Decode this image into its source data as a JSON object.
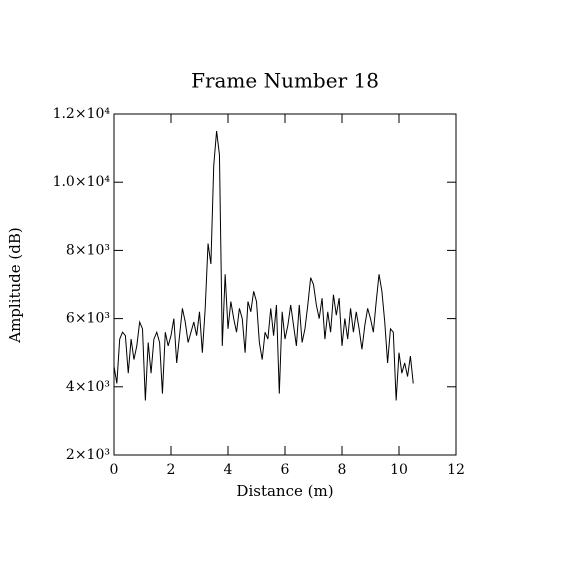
{
  "chart_data": {
    "type": "line",
    "title": "Frame Number 18",
    "xlabel": "Distance (m)",
    "ylabel": "Amplitude (dB)",
    "color": "#000000",
    "x": [
      0.0,
      0.1,
      0.2,
      0.3,
      0.4,
      0.5,
      0.6,
      0.7,
      0.8,
      0.9,
      1.0,
      1.1,
      1.2,
      1.3,
      1.4,
      1.5,
      1.6,
      1.7,
      1.8,
      1.9,
      2.0,
      2.1,
      2.2,
      2.3,
      2.4,
      2.5,
      2.6,
      2.7,
      2.8,
      2.9,
      3.0,
      3.1,
      3.2,
      3.3,
      3.4,
      3.5,
      3.6,
      3.7,
      3.8,
      3.9,
      4.0,
      4.1,
      4.2,
      4.3,
      4.4,
      4.5,
      4.6,
      4.7,
      4.8,
      4.9,
      5.0,
      5.1,
      5.2,
      5.3,
      5.4,
      5.5,
      5.6,
      5.7,
      5.8,
      5.9,
      6.0,
      6.1,
      6.2,
      6.3,
      6.4,
      6.5,
      6.6,
      6.7,
      6.8,
      6.9,
      7.0,
      7.1,
      7.2,
      7.3,
      7.4,
      7.5,
      7.6,
      7.7,
      7.8,
      7.9,
      8.0,
      8.1,
      8.2,
      8.3,
      8.4,
      8.5,
      8.6,
      8.7,
      8.8,
      8.9,
      9.0,
      9.1,
      9.2,
      9.3,
      9.4,
      9.5,
      9.6,
      9.7,
      9.8,
      9.9,
      10.0,
      10.1,
      10.2,
      10.3,
      10.4,
      10.5
    ],
    "values": [
      4600,
      4100,
      5400,
      5600,
      5500,
      4400,
      5400,
      4800,
      5200,
      5900,
      5700,
      3600,
      5300,
      4400,
      5400,
      5600,
      5300,
      3800,
      5600,
      5200,
      5500,
      6000,
      4700,
      5500,
      6300,
      5900,
      5300,
      5600,
      5900,
      5500,
      6200,
      5000,
      6300,
      8200,
      7600,
      10500,
      11500,
      10800,
      5200,
      7300,
      5700,
      6500,
      6000,
      5600,
      6300,
      6000,
      5000,
      6500,
      6200,
      6800,
      6500,
      5300,
      4800,
      5600,
      5400,
      6300,
      5500,
      6400,
      3800,
      6200,
      5400,
      5800,
      6400,
      5800,
      5200,
      6400,
      5300,
      5700,
      6400,
      7200,
      7000,
      6400,
      6000,
      6600,
      5400,
      6200,
      5600,
      6700,
      6100,
      6600,
      5200,
      6000,
      5400,
      6300,
      5600,
      6200,
      5700,
      5100,
      5800,
      6300,
      6000,
      5600,
      6500,
      7300,
      6800,
      5900,
      4700,
      5700,
      5600,
      3600,
      5000,
      4400,
      4700,
      4300,
      4900,
      4100
    ],
    "xlim": [
      0,
      12
    ],
    "ylim": [
      2000,
      12000
    ],
    "xticks": [
      0,
      2,
      4,
      6,
      8,
      10,
      12
    ],
    "yticks": [
      {
        "value": 2000,
        "label": "2×10³"
      },
      {
        "value": 4000,
        "label": "4×10³"
      },
      {
        "value": 6000,
        "label": "6×10³"
      },
      {
        "value": 8000,
        "label": "8×10³"
      },
      {
        "value": 10000,
        "label": "1.0×10⁴"
      },
      {
        "value": 12000,
        "label": "1.2×10⁴"
      }
    ]
  }
}
